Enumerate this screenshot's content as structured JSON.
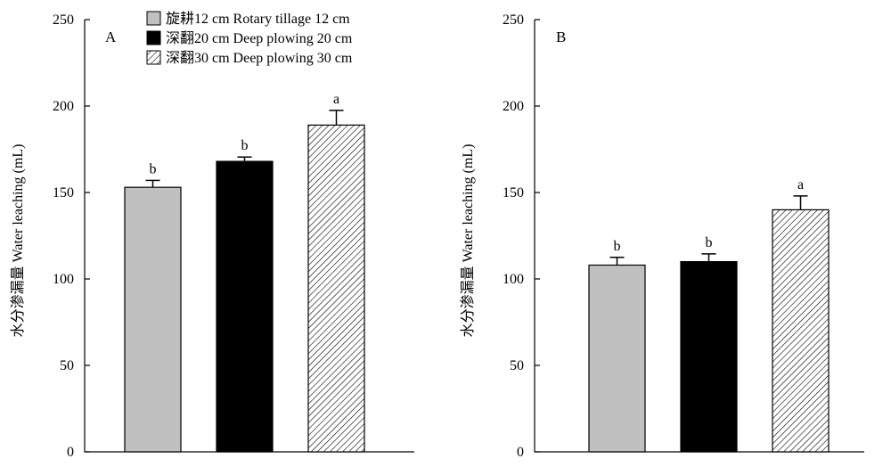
{
  "chart_data": [
    {
      "type": "bar",
      "panel_label": "A",
      "ylabel": "水分渗漏量 Water leaching (mL)",
      "ylim": [
        0,
        250
      ],
      "yticks": [
        0,
        50,
        100,
        150,
        200,
        250
      ],
      "categories": [
        "旋耕12 cm Rotary tillage 12 cm",
        "深翻20 cm Deep plowing 20 cm",
        "深翻30 cm Deep plowing 30 cm"
      ],
      "values": [
        153,
        168,
        189
      ],
      "errors": [
        4,
        2.5,
        8.5
      ],
      "significance": [
        "b",
        "b",
        "a"
      ],
      "colors": [
        "#c0c0c0",
        "#000000",
        "hatch"
      ],
      "legend": {
        "placement": "top-center",
        "entries": [
          "旋耕12 cm Rotary tillage 12 cm",
          "深翻20 cm Deep plowing 20 cm",
          "深翻30 cm Deep plowing 30 cm"
        ]
      },
      "grid": false
    },
    {
      "type": "bar",
      "panel_label": "B",
      "ylabel": "水分渗漏量 Water leaching (mL)",
      "ylim": [
        0,
        250
      ],
      "yticks": [
        0,
        50,
        100,
        150,
        200,
        250
      ],
      "categories": [
        "旋耕12 cm Rotary tillage 12 cm",
        "深翻20 cm Deep plowing 20 cm",
        "深翻30 cm Deep plowing 30 cm"
      ],
      "values": [
        108,
        110,
        140
      ],
      "errors": [
        4.5,
        4.5,
        8
      ],
      "significance": [
        "b",
        "b",
        "a"
      ],
      "colors": [
        "#c0c0c0",
        "#000000",
        "hatch"
      ],
      "grid": false
    }
  ]
}
